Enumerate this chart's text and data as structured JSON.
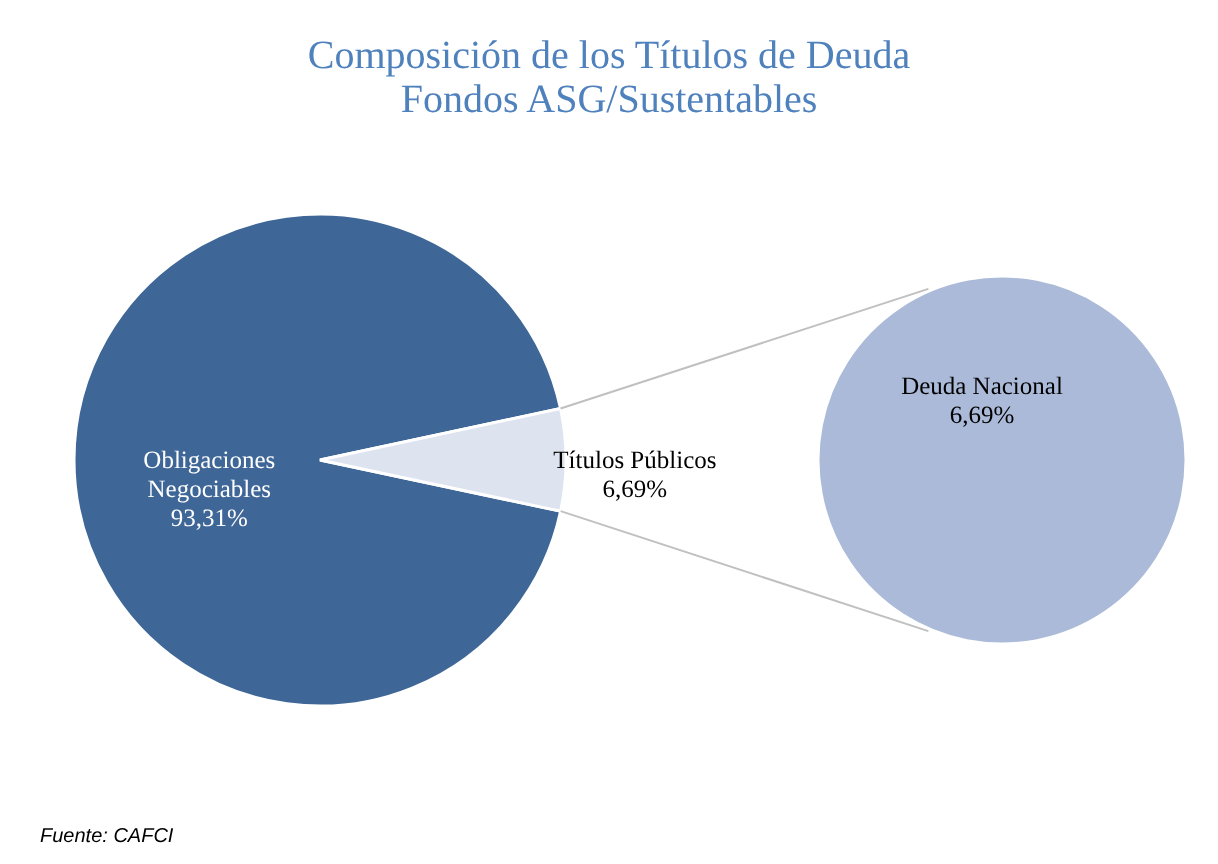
{
  "chart_data": [
    {
      "type": "pie",
      "title": [
        "Composición de los Títulos de Deuda",
        "Fondos ASG/Sustentables"
      ],
      "categories": [
        "Obligaciones Negociables",
        "Títulos Públicos"
      ],
      "values": [
        93.31,
        6.69
      ],
      "colors": [
        "#3e6697",
        "#dde3ef"
      ],
      "value_labels": [
        "93,31%",
        "6,69%"
      ],
      "annotations": [
        "Fuente:  CAFCI"
      ]
    },
    {
      "type": "pie",
      "categories": [
        "Deuda Nacional"
      ],
      "values": [
        6.69
      ],
      "colors": [
        "#aabad8"
      ],
      "value_labels": [
        "6,69%"
      ]
    }
  ]
}
